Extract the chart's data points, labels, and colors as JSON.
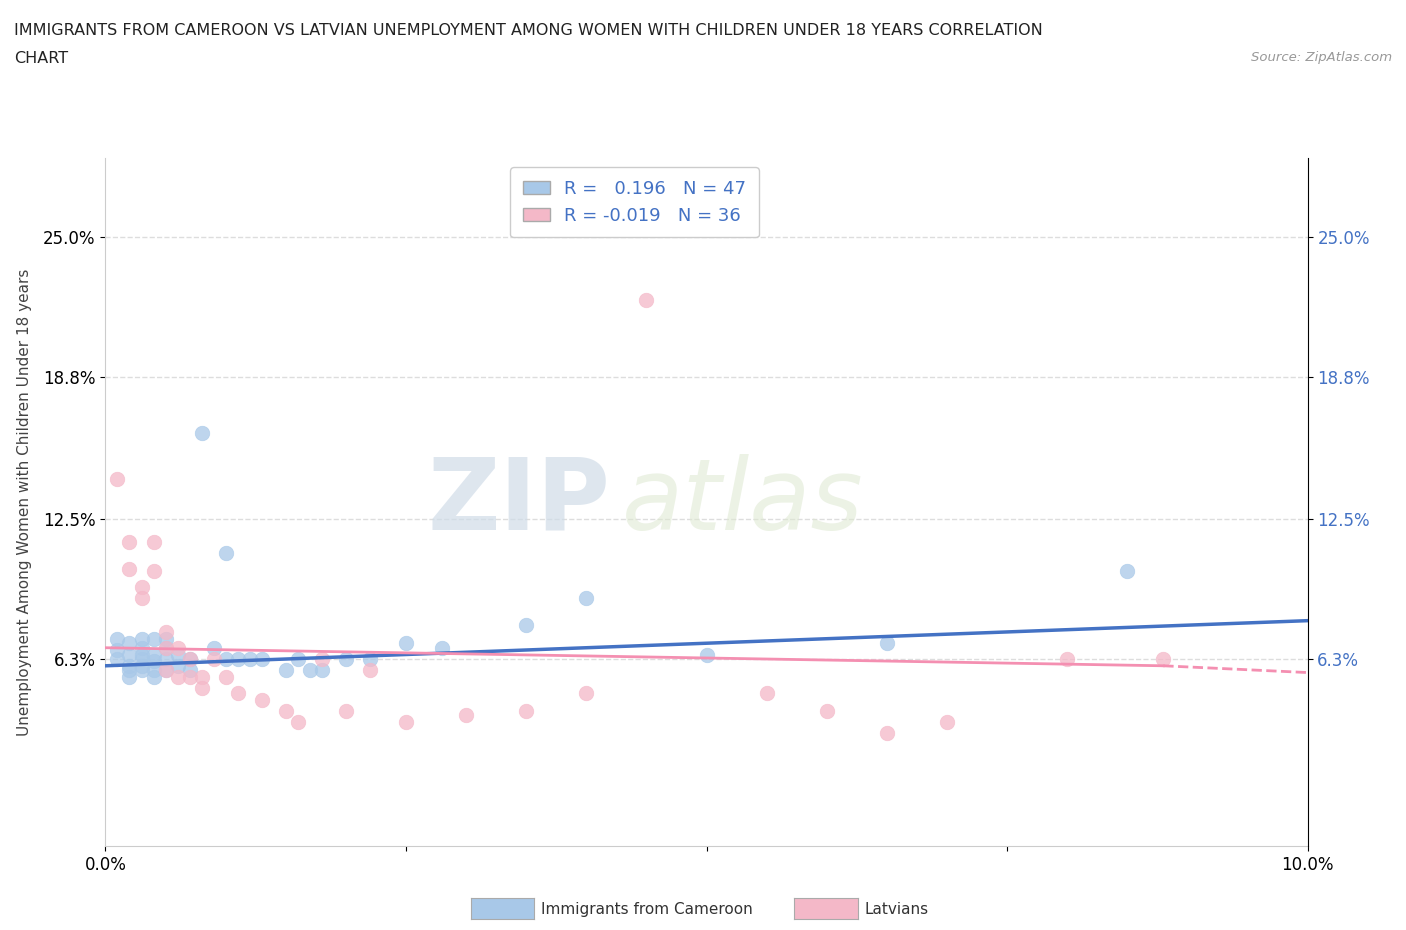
{
  "title_line1": "IMMIGRANTS FROM CAMEROON VS LATVIAN UNEMPLOYMENT AMONG WOMEN WITH CHILDREN UNDER 18 YEARS CORRELATION",
  "title_line2": "CHART",
  "source": "Source: ZipAtlas.com",
  "ylabel": "Unemployment Among Women with Children Under 18 years",
  "xlim": [
    0.0,
    0.1
  ],
  "ylim": [
    -0.02,
    0.285
  ],
  "yticks": [
    0.063,
    0.125,
    0.188,
    0.25
  ],
  "ytick_labels": [
    "6.3%",
    "12.5%",
    "18.8%",
    "25.0%"
  ],
  "xticks": [
    0.0,
    0.025,
    0.05,
    0.075,
    0.1
  ],
  "xtick_labels": [
    "0.0%",
    "",
    "",
    "",
    "10.0%"
  ],
  "right_ytick_labels": [
    "6.3%",
    "12.5%",
    "18.8%",
    "25.0%"
  ],
  "color_blue": "#a8c8e8",
  "color_pink": "#f4b8c8",
  "line_color_blue": "#4472c4",
  "line_color_pink": "#f48fb1",
  "line_color_pink_dash": "#e8a0b8",
  "watermark_ZIP": "ZIP",
  "watermark_atlas": "atlas",
  "blue_scatter_x": [
    0.001,
    0.001,
    0.001,
    0.002,
    0.002,
    0.002,
    0.002,
    0.002,
    0.003,
    0.003,
    0.003,
    0.003,
    0.003,
    0.003,
    0.004,
    0.004,
    0.004,
    0.004,
    0.004,
    0.005,
    0.005,
    0.005,
    0.005,
    0.006,
    0.006,
    0.007,
    0.007,
    0.008,
    0.009,
    0.01,
    0.01,
    0.011,
    0.012,
    0.013,
    0.015,
    0.016,
    0.017,
    0.018,
    0.02,
    0.022,
    0.025,
    0.028,
    0.035,
    0.04,
    0.05,
    0.065,
    0.085
  ],
  "blue_scatter_y": [
    0.067,
    0.072,
    0.063,
    0.065,
    0.07,
    0.06,
    0.055,
    0.058,
    0.063,
    0.068,
    0.072,
    0.058,
    0.065,
    0.06,
    0.062,
    0.065,
    0.072,
    0.058,
    0.055,
    0.063,
    0.068,
    0.058,
    0.072,
    0.065,
    0.06,
    0.063,
    0.058,
    0.163,
    0.068,
    0.11,
    0.063,
    0.063,
    0.063,
    0.063,
    0.058,
    0.063,
    0.058,
    0.058,
    0.063,
    0.063,
    0.07,
    0.068,
    0.078,
    0.09,
    0.065,
    0.07,
    0.102
  ],
  "pink_scatter_x": [
    0.001,
    0.002,
    0.002,
    0.003,
    0.003,
    0.004,
    0.004,
    0.005,
    0.005,
    0.005,
    0.006,
    0.006,
    0.007,
    0.007,
    0.008,
    0.008,
    0.009,
    0.01,
    0.011,
    0.013,
    0.015,
    0.016,
    0.018,
    0.02,
    0.022,
    0.025,
    0.03,
    0.035,
    0.04,
    0.045,
    0.055,
    0.06,
    0.065,
    0.07,
    0.08,
    0.088
  ],
  "pink_scatter_y": [
    0.143,
    0.103,
    0.115,
    0.095,
    0.09,
    0.102,
    0.115,
    0.068,
    0.058,
    0.075,
    0.068,
    0.055,
    0.055,
    0.063,
    0.055,
    0.05,
    0.063,
    0.055,
    0.048,
    0.045,
    0.04,
    0.035,
    0.063,
    0.04,
    0.058,
    0.035,
    0.038,
    0.04,
    0.048,
    0.222,
    0.048,
    0.04,
    0.03,
    0.035,
    0.063,
    0.063
  ],
  "blue_trend_x": [
    0.0,
    0.1
  ],
  "blue_trend_y": [
    0.06,
    0.08
  ],
  "pink_trend_x": [
    0.0,
    0.088
  ],
  "pink_trend_y": [
    0.068,
    0.06
  ],
  "background_color": "#ffffff",
  "grid_color": "#dddddd"
}
